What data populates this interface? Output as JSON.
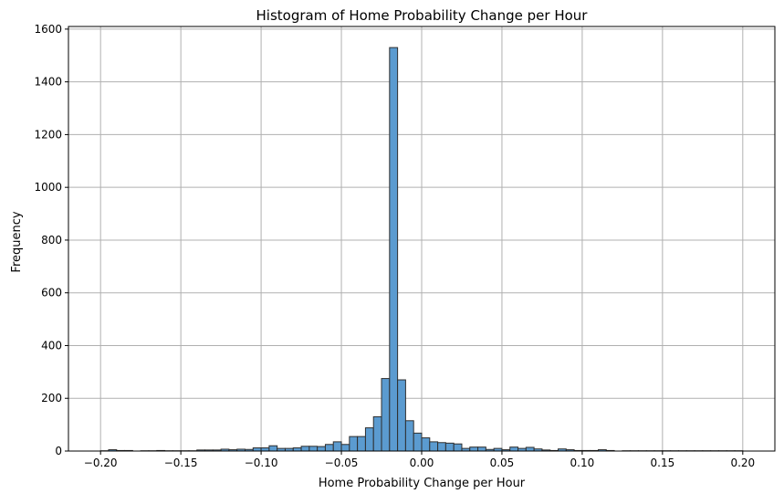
{
  "chart_data": {
    "type": "bar",
    "title": "Histogram of Home Probability Change per Hour",
    "xlabel": "Home Probability Change per Hour",
    "ylabel": "Frequency",
    "xlim": [
      -0.22,
      0.22
    ],
    "ylim": [
      0,
      1610
    ],
    "x_ticks": [
      -0.2,
      -0.15,
      -0.1,
      -0.05,
      0.0,
      0.05,
      0.1,
      0.15,
      0.2
    ],
    "x_tick_labels": [
      "−0.20",
      "−0.15",
      "−0.10",
      "−0.05",
      "0.00",
      "0.05",
      "0.10",
      "0.15",
      "0.20"
    ],
    "y_ticks": [
      0,
      200,
      400,
      600,
      800,
      1000,
      1200,
      1400,
      1600
    ],
    "y_tick_labels": [
      "0",
      "200",
      "400",
      "600",
      "800",
      "1000",
      "1200",
      "1400",
      "1600"
    ],
    "grid": true,
    "bin_start": -0.2,
    "bin_width": 0.005,
    "values": [
      1,
      5,
      2,
      2,
      0,
      1,
      1,
      2,
      1,
      1,
      1,
      1,
      4,
      4,
      4,
      7,
      5,
      7,
      6,
      12,
      12,
      20,
      10,
      10,
      12,
      18,
      18,
      17,
      25,
      35,
      25,
      55,
      55,
      88,
      130,
      275,
      1530,
      270,
      115,
      68,
      50,
      35,
      32,
      30,
      27,
      10,
      15,
      15,
      6,
      10,
      5,
      15,
      10,
      14,
      8,
      4,
      2,
      8,
      5,
      2,
      2,
      2,
      5,
      2,
      0,
      1,
      1,
      1,
      1,
      1,
      1,
      1,
      1,
      1,
      1,
      1,
      1,
      1,
      1,
      1
    ],
    "colors": {
      "bar_fill": "#5b9bd0",
      "bar_edge": "#2f2f2f",
      "grid": "#b0b0b0",
      "axis": "#000000"
    }
  }
}
